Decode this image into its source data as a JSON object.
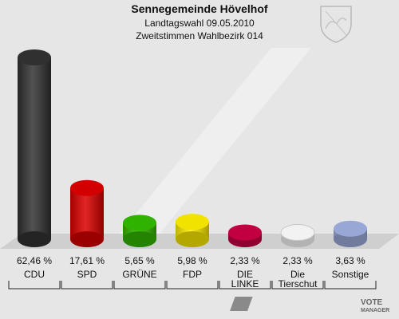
{
  "header": {
    "title": "Sennegemeinde Hövelhof",
    "subtitle1": "Landtagswahl 09.05.2010",
    "subtitle2": "Zweitstimmen Wahlbezirk 014"
  },
  "logo": {
    "text": "VOTE MANAGER"
  },
  "chart_data": {
    "type": "bar",
    "title": "Sennegemeinde Hövelhof",
    "subtitle": "Landtagswahl 09.05.2010 — Zweitstimmen Wahlbezirk 014",
    "categories": [
      "CDU",
      "SPD",
      "GRÜNE",
      "FDP",
      "DIE LINKE",
      "Die Tierschut",
      "Sonstige"
    ],
    "category_lines": [
      [
        "CDU"
      ],
      [
        "SPD"
      ],
      [
        "GRÜNE"
      ],
      [
        "FDP"
      ],
      [
        "DIE",
        "LINKE"
      ],
      [
        "Die",
        "Tierschut"
      ],
      [
        "Sonstige"
      ]
    ],
    "values": [
      62.46,
      17.61,
      5.65,
      5.98,
      2.33,
      2.33,
      3.63
    ],
    "value_labels": [
      "62,46 %",
      "17,61 %",
      "5,65 %",
      "5,98 %",
      "2,33 %",
      "2,33 %",
      "3,63 %"
    ],
    "colors": [
      "#333333",
      "#dd0000",
      "#33bb00",
      "#ffee00",
      "#cc0044",
      "#ffffff",
      "#a0b0e0"
    ],
    "ylim": [
      0,
      62.46
    ],
    "grid": false,
    "legend": "none"
  }
}
